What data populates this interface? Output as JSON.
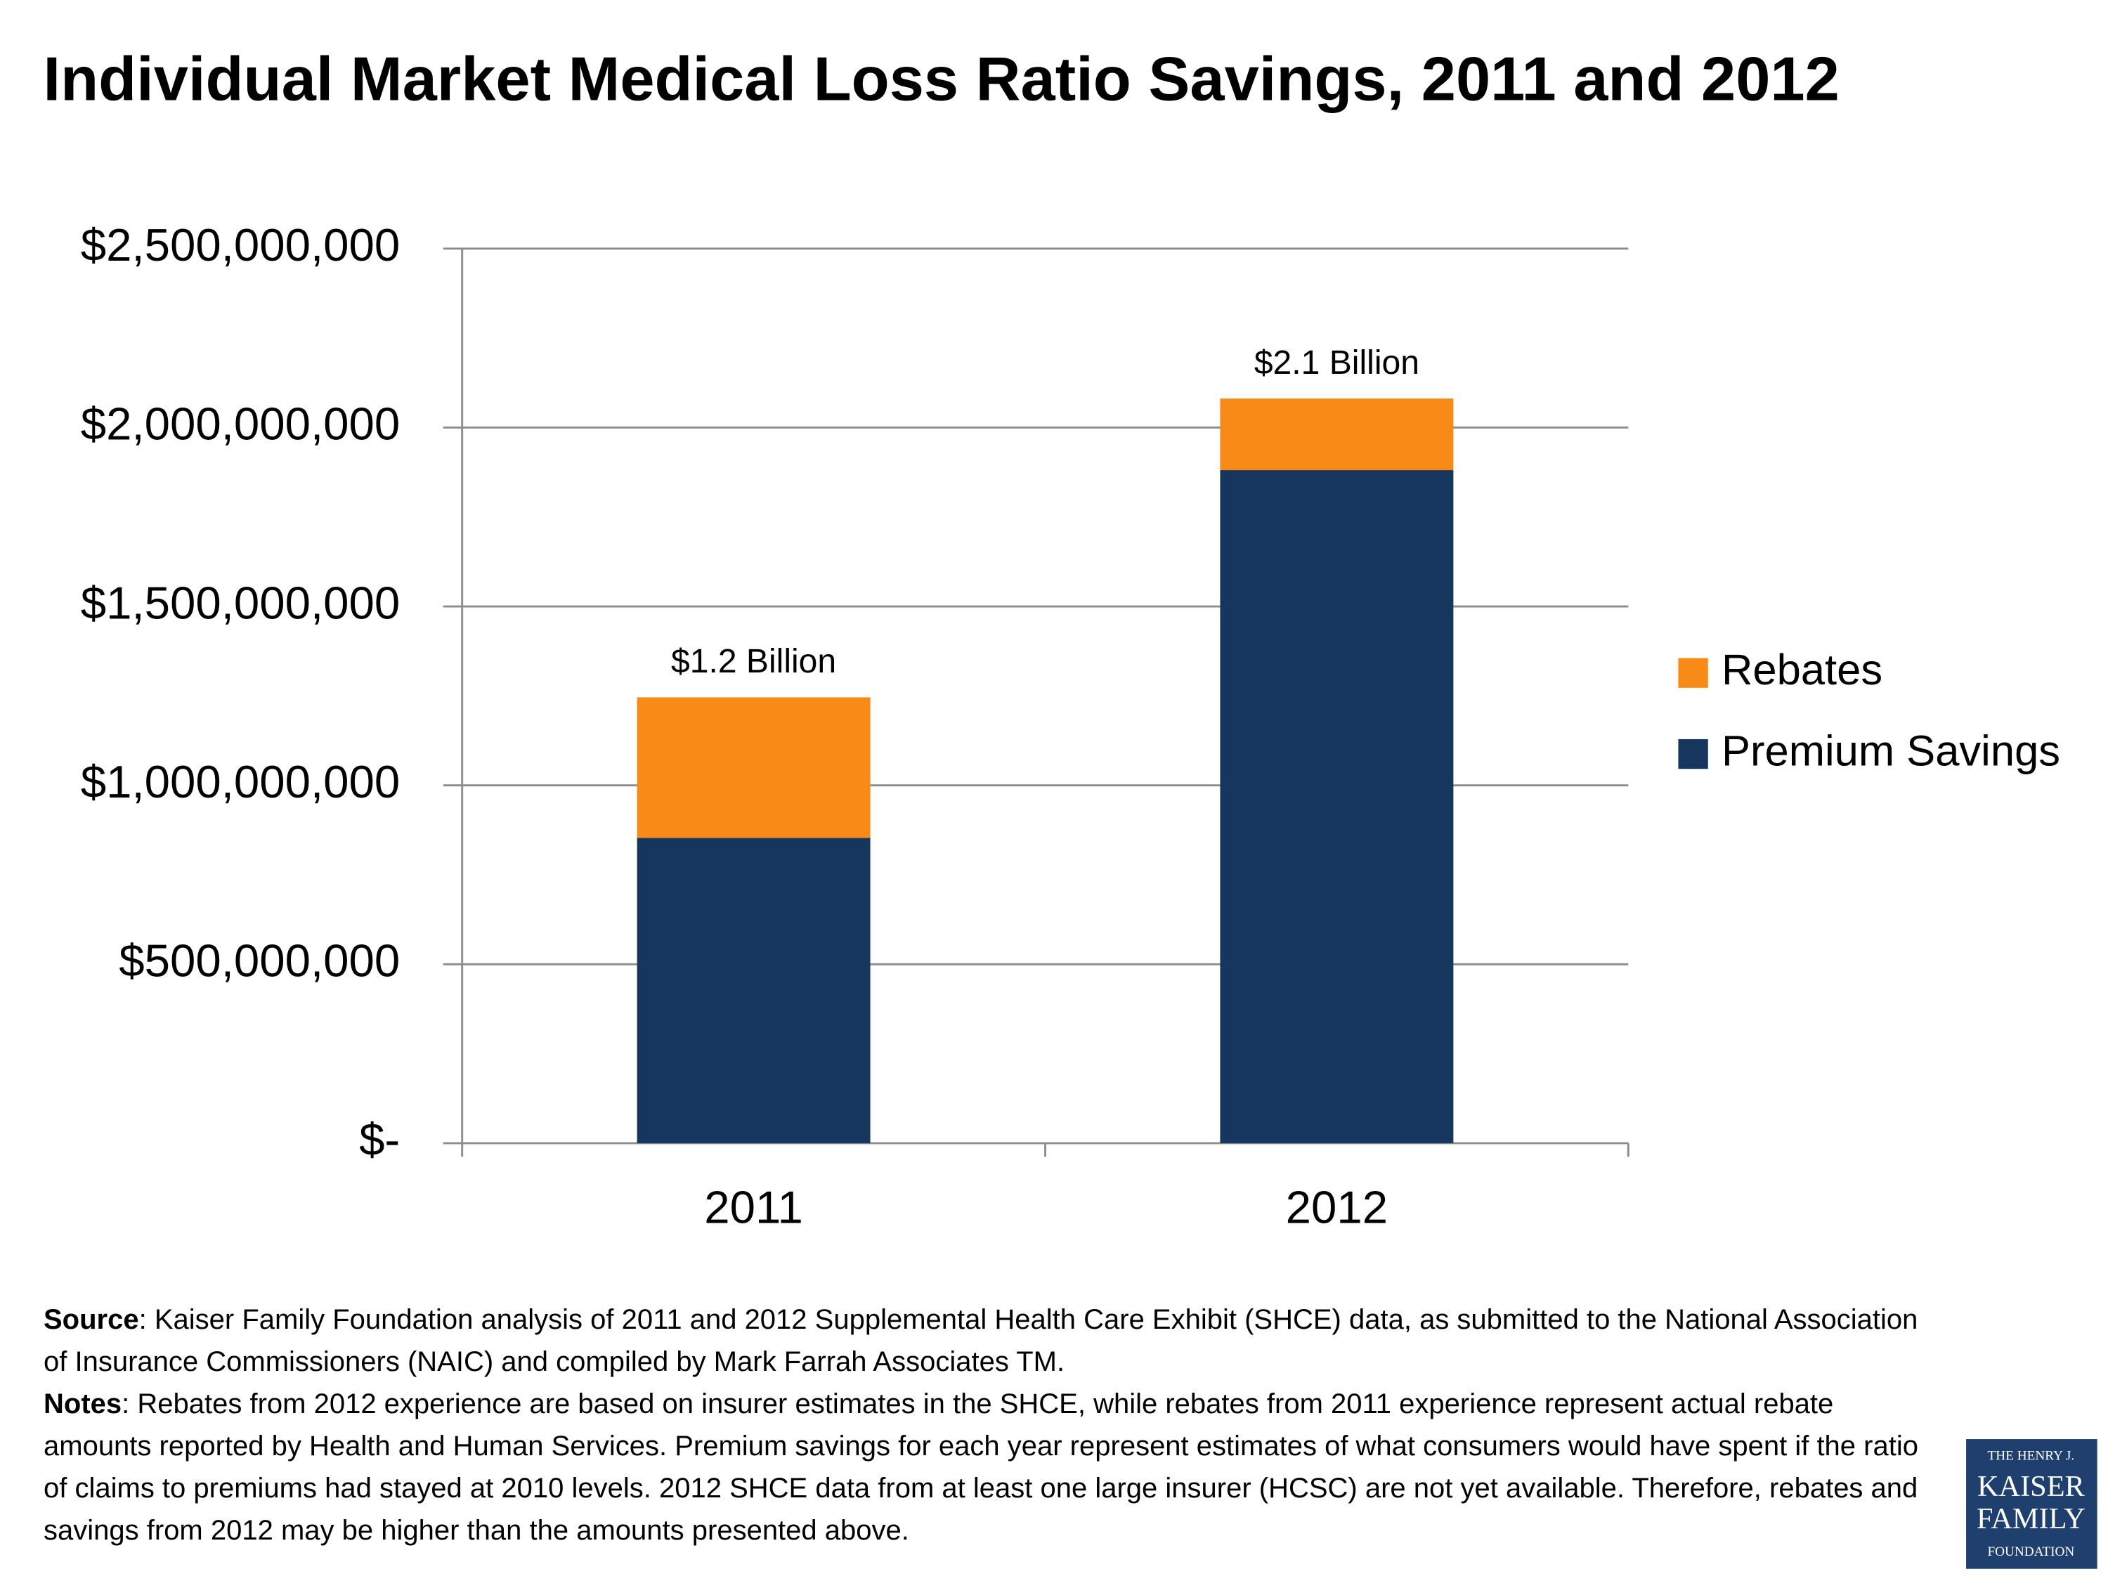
{
  "chart_data": {
    "type": "stacked_bar",
    "title": "Individual Market Medical Loss Ratio Savings, 2011 and 2012",
    "categories": [
      "2011",
      "2012"
    ],
    "series": [
      {
        "name": "Premium Savings",
        "color": "#17365d",
        "values": [
          853000000,
          1881000000
        ]
      },
      {
        "name": "Rebates",
        "color": "#f88b17",
        "values": [
          393000000,
          200000000
        ]
      }
    ],
    "total_labels": [
      "$1.2 Billion",
      "$2.1 Billion"
    ],
    "ylim": [
      0,
      2500000000
    ],
    "yticks": [
      {
        "value": 0,
        "label": "$-"
      },
      {
        "value": 500000000,
        "label": "$500,000,000"
      },
      {
        "value": 1000000000,
        "label": "$1,000,000,000"
      },
      {
        "value": 1500000000,
        "label": "$1,500,000,000"
      },
      {
        "value": 2000000000,
        "label": "$2,000,000,000"
      },
      {
        "value": 2500000000,
        "label": "$2,500,000,000"
      }
    ],
    "grid": true,
    "legend": "right"
  },
  "footer": {
    "source_label": "Source",
    "source": ": Kaiser Family Foundation analysis of 2011 and 2012 Supplemental Health Care Exhibit (SHCE) data, as submitted to the National Association of Insurance Commissioners (NAIC) and compiled by Mark Farrah Associates TM.",
    "notes_label": "Notes",
    "notes": ": Rebates from 2012 experience are based on insurer estimates in the SHCE, while rebates from 2011 experience represent actual rebate amounts reported by Health and Human Services. Premium savings for each year represent estimates of what consumers would have spent if the ratio of claims to premiums had stayed at 2010 levels. 2012 SHCE data from at least one large insurer (HCSC) are not yet available. Therefore, rebates and savings from 2012 may be higher than the amounts presented above."
  },
  "logo": {
    "lines": [
      "THE HENRY J.",
      "KAISER",
      "FAMILY",
      "FOUNDATION"
    ]
  }
}
